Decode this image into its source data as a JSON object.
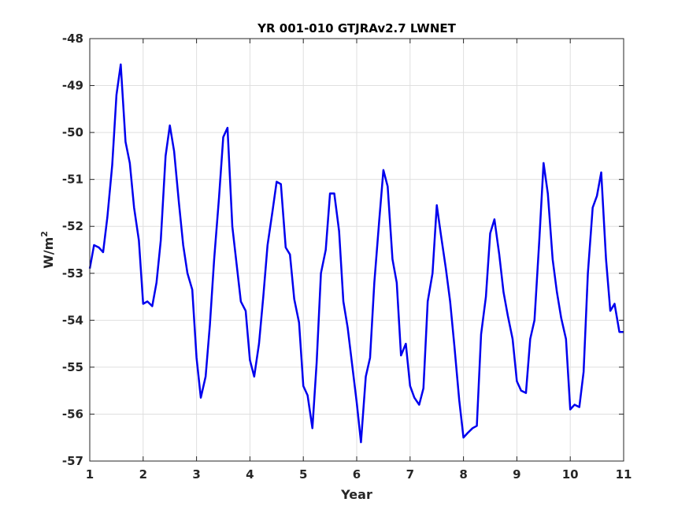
{
  "chart_data": {
    "type": "line",
    "title": "YR 001-010 GTJRAv2.7 LWNET",
    "xlabel": "Year",
    "ylabel_base": "W/m",
    "ylabel_sup": "2",
    "xlim": [
      1,
      11
    ],
    "ylim": [
      -57,
      -48
    ],
    "xticks": [
      1,
      2,
      3,
      4,
      5,
      6,
      7,
      8,
      9,
      10,
      11
    ],
    "yticks": [
      -48,
      -49,
      -50,
      -51,
      -52,
      -53,
      -54,
      -55,
      -56,
      -57
    ],
    "grid": true,
    "line_color": "#0000ee",
    "series": [
      {
        "x": [
          1.0,
          1.08,
          1.17,
          1.25,
          1.33,
          1.42,
          1.5,
          1.58,
          1.67,
          1.75,
          1.83,
          1.92,
          2.0,
          2.08,
          2.17,
          2.25,
          2.33,
          2.42,
          2.5,
          2.58,
          2.67,
          2.75,
          2.83,
          2.92,
          3.0,
          3.08,
          3.17,
          3.25,
          3.33,
          3.42,
          3.5,
          3.58,
          3.67,
          3.75,
          3.83,
          3.92,
          4.0,
          4.08,
          4.17,
          4.25,
          4.33,
          4.42,
          4.5,
          4.58,
          4.67,
          4.75,
          4.83,
          4.92,
          5.0,
          5.08,
          5.17,
          5.25,
          5.33,
          5.42,
          5.5,
          5.58,
          5.67,
          5.75,
          5.83,
          5.92,
          6.0,
          6.08,
          6.17,
          6.25,
          6.33,
          6.42,
          6.5,
          6.58,
          6.67,
          6.75,
          6.83,
          6.92,
          7.0,
          7.08,
          7.17,
          7.25,
          7.33,
          7.42,
          7.5,
          7.58,
          7.67,
          7.75,
          7.83,
          7.92,
          8.0,
          8.08,
          8.17,
          8.25,
          8.33,
          8.42,
          8.5,
          8.58,
          8.67,
          8.75,
          8.83,
          8.92,
          9.0,
          9.08,
          9.17,
          9.25,
          9.33,
          9.42,
          9.5,
          9.58,
          9.67,
          9.75,
          9.83,
          9.92,
          10.0,
          10.08,
          10.17,
          10.25,
          10.33,
          10.42,
          10.5,
          10.58,
          10.67,
          10.75,
          10.83,
          10.92,
          11.0
        ],
        "y": [
          -52.9,
          -52.4,
          -52.45,
          -52.55,
          -51.8,
          -50.7,
          -49.2,
          -48.55,
          -50.2,
          -50.65,
          -51.6,
          -52.3,
          -53.65,
          -53.6,
          -53.7,
          -53.2,
          -52.3,
          -50.5,
          -49.85,
          -50.4,
          -51.5,
          -52.4,
          -53.0,
          -53.35,
          -54.8,
          -55.65,
          -55.2,
          -54.1,
          -52.7,
          -51.4,
          -50.1,
          -49.9,
          -52.0,
          -52.8,
          -53.6,
          -53.8,
          -54.85,
          -55.2,
          -54.5,
          -53.5,
          -52.4,
          -51.7,
          -51.05,
          -51.1,
          -52.45,
          -52.6,
          -53.55,
          -54.05,
          -55.4,
          -55.6,
          -56.3,
          -54.9,
          -53.0,
          -52.5,
          -51.3,
          -51.3,
          -52.1,
          -53.6,
          -54.15,
          -55.0,
          -55.75,
          -56.6,
          -55.2,
          -54.8,
          -53.2,
          -51.9,
          -50.8,
          -51.15,
          -52.7,
          -53.2,
          -54.75,
          -54.5,
          -55.4,
          -55.65,
          -55.8,
          -55.45,
          -53.6,
          -53.0,
          -51.55,
          -52.2,
          -52.9,
          -53.6,
          -54.55,
          -55.7,
          -56.5,
          -56.4,
          -56.3,
          -56.25,
          -54.3,
          -53.5,
          -52.15,
          -51.85,
          -52.6,
          -53.4,
          -53.9,
          -54.4,
          -55.3,
          -55.5,
          -55.55,
          -54.4,
          -54.0,
          -52.3,
          -50.65,
          -51.3,
          -52.7,
          -53.4,
          -53.95,
          -54.4,
          -55.9,
          -55.8,
          -55.85,
          -55.1,
          -53.0,
          -51.6,
          -51.35,
          -50.85,
          -52.7,
          -53.8,
          -53.65,
          -54.25,
          -54.25
        ]
      }
    ]
  }
}
